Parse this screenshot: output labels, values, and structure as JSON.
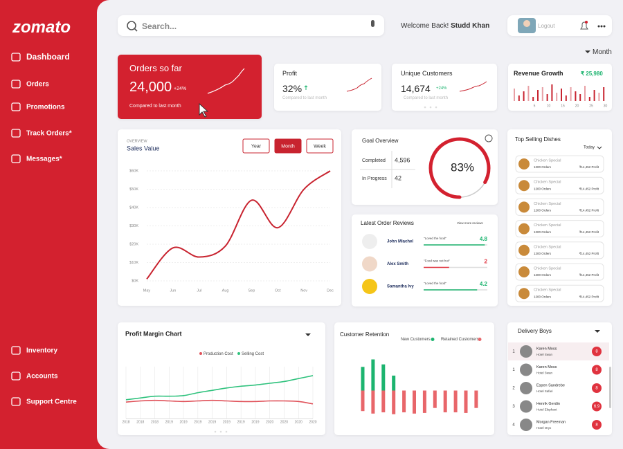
{
  "brand": "zomato",
  "nav": [
    "Dashboard",
    "Orders",
    "Promotions",
    "Track Orders*",
    "Messages*"
  ],
  "nav_bottom": [
    "Inventory",
    "Accounts",
    "Support Centre"
  ],
  "search_placeholder": "Search...",
  "welcome": "Welcome Back!",
  "user": "Studd Khan",
  "logout": "Logout",
  "period": "Month",
  "kpis": {
    "orders": {
      "title": "Orders so far",
      "value": "24,000",
      "change": "+24%",
      "note": "Compared to last month"
    },
    "profit": {
      "title": "Profit",
      "value": "32%",
      "note": "Compared to last month"
    },
    "customers": {
      "title": "Unique Customers",
      "value": "14,674",
      "change": "+24%",
      "note": "Compared to last month"
    },
    "revenue": {
      "title": "Revenue Growth",
      "value": "₹ 25,980",
      "axis": [
        "5",
        "10",
        "15",
        "20",
        "25",
        "30"
      ]
    }
  },
  "goal": {
    "title": "Goal Overview",
    "rows": [
      {
        "label": "Completed",
        "value": "4,596"
      },
      {
        "label": "In Progress",
        "value": "42"
      }
    ],
    "percent": 83,
    "percent_label": "83%"
  },
  "reviews": {
    "title": "Latest Order Reviews",
    "link": "View more reviews",
    "items": [
      {
        "name": "John Miachel",
        "quote": "\"Loved the food\"",
        "score": 4.8,
        "color": "#1cb46f"
      },
      {
        "name": "Alex Smith",
        "quote": "\"Food was not hot\"",
        "score": 2,
        "color": "#e0333f"
      },
      {
        "name": "Samantha Ivy",
        "quote": "\"Loved the food\"",
        "score": 4.2,
        "color": "#1cb46f"
      }
    ]
  },
  "dishes": {
    "title": "Top Selling Dishes",
    "filter": "Today",
    "items": [
      {
        "name": "Chicken Special",
        "orders": "1200 Orders",
        "profit": "₹14,452 Profit"
      },
      {
        "name": "Chicken Special",
        "orders": "1200 Orders",
        "profit": "₹14,452 Profit"
      },
      {
        "name": "Chicken Special",
        "orders": "1200 Orders",
        "profit": "₹14,452 Profit"
      },
      {
        "name": "Chicken Special",
        "orders": "1200 Orders",
        "profit": "₹14,452 Profit"
      },
      {
        "name": "Chicken Special",
        "orders": "1200 Orders",
        "profit": "₹14,452 Profit"
      },
      {
        "name": "Chicken Special",
        "orders": "1200 Orders",
        "profit": "₹14,452 Profit"
      },
      {
        "name": "Chicken Special",
        "orders": "1200 Orders",
        "profit": "₹14,452 Profit"
      }
    ]
  },
  "delivery": {
    "title": "Delivery Boys",
    "items": [
      {
        "rank": "1",
        "name": "Karen Moss",
        "hotel": "Hotel Swan",
        "count": "8"
      },
      {
        "rank": "1",
        "name": "Karen Moss",
        "hotel": "Hotel Swan",
        "count": "8"
      },
      {
        "rank": "2",
        "name": "Espen Sandrebe",
        "hotel": "Hotel Safari",
        "count": "8"
      },
      {
        "rank": "3",
        "name": "Henrik Gerdin",
        "hotel": "Hotel Elephant",
        "count": "6.9"
      },
      {
        "rank": "4",
        "name": "Morgan Freeman",
        "hotel": "Hotel Oryx",
        "count": "8"
      }
    ]
  },
  "chart_data": [
    {
      "type": "line",
      "overline": "OVERVIEW",
      "title": "Sales Value",
      "buttons": [
        "Year",
        "Month",
        "Week"
      ],
      "active_button": 1,
      "categories": [
        "May",
        "Jun",
        "Jul",
        "Aug",
        "Sep",
        "Oct",
        "Nov",
        "Dec"
      ],
      "values": [
        1,
        18,
        13,
        19,
        44,
        29,
        50,
        60
      ],
      "color": "#c8232f",
      "ylim": [
        0,
        60
      ],
      "yticks": [
        {
          "value": 0,
          "label": "$0K"
        },
        {
          "value": 10,
          "label": "$10K"
        },
        {
          "value": 20,
          "label": "$20K"
        },
        {
          "value": 30,
          "label": "$30K"
        },
        {
          "value": 40,
          "label": "$40K"
        },
        {
          "value": 50,
          "label": "$50K"
        },
        {
          "value": 60,
          "label": "$60K"
        }
      ],
      "grid": true
    },
    {
      "type": "line",
      "title": "Profit Margin Chart",
      "categories": [
        "2018",
        "2018",
        "2018",
        "2019",
        "2019",
        "2019",
        "2019",
        "2019",
        "2019",
        "2019",
        "2020",
        "2020",
        "2020",
        "2020"
      ],
      "series": [
        {
          "name": "Production Cost",
          "color": "#e0525a",
          "values": [
            28,
            30,
            31,
            30,
            29,
            30,
            31,
            30,
            29,
            29,
            30,
            30,
            29,
            25
          ]
        },
        {
          "name": "Selling Cost",
          "color": "#2fc27d",
          "values": [
            32,
            35,
            38,
            38,
            39,
            44,
            48,
            52,
            55,
            57,
            60,
            63,
            68,
            73
          ]
        }
      ],
      "ylim": [
        0,
        100
      ],
      "grid": true
    },
    {
      "type": "bar",
      "title": "Customer Retention",
      "categories": [
        null,
        null,
        null,
        null,
        null,
        null,
        null,
        null,
        null,
        null,
        null,
        null
      ],
      "series": [
        {
          "name": "New Customers",
          "color": "#1cb46f",
          "values": [
            38,
            50,
            42,
            24,
            0,
            0,
            0,
            0,
            0,
            0,
            0,
            0
          ]
        },
        {
          "name": "Retained Customers",
          "color": "#e8666a",
          "values": [
            -33,
            -37,
            -35,
            -38,
            -35,
            -37,
            -36,
            -28,
            -35,
            -35,
            -36,
            -28
          ]
        }
      ],
      "ylim": [
        -45,
        55
      ]
    }
  ]
}
